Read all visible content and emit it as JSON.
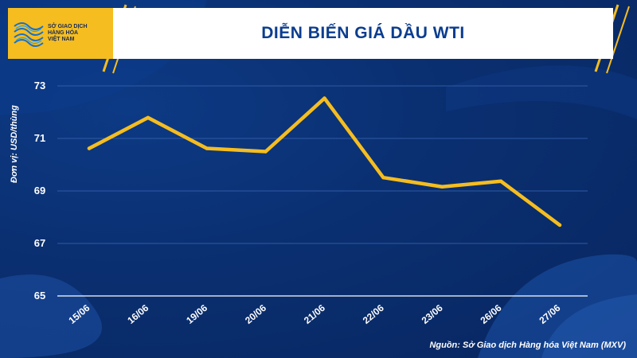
{
  "header": {
    "logo_lines": [
      "SỞ GIAO DỊCH",
      "HÀNG HÓA",
      "VIỆT NAM"
    ],
    "title": "DIỄN BIẾN GIÁ DẦU WTI"
  },
  "source_note": "Nguồn: Sở Giao dịch Hàng hóa Việt Nam (MXV)",
  "colors": {
    "background": "#0b2f6e",
    "line": "#f5bd1f",
    "brand": "#f5bd1f",
    "title": "#0b3d8f"
  },
  "chart_data": {
    "type": "line",
    "title": "DIỄN BIẾN GIÁ DẦU WTI",
    "ylabel": "Đơn vị: USD/thùng",
    "xlabel": "",
    "categories": [
      "15/06",
      "16/06",
      "19/06",
      "20/06",
      "21/06",
      "22/06",
      "23/06",
      "26/06",
      "27/06"
    ],
    "series": [
      {
        "values": [
          70.62,
          71.79,
          70.62,
          70.5,
          72.53,
          69.51,
          69.16,
          69.37,
          67.7
        ]
      }
    ],
    "ylim": [
      65,
      73
    ],
    "yticks": [
      65,
      67,
      69,
      71,
      73
    ],
    "grid": true
  }
}
